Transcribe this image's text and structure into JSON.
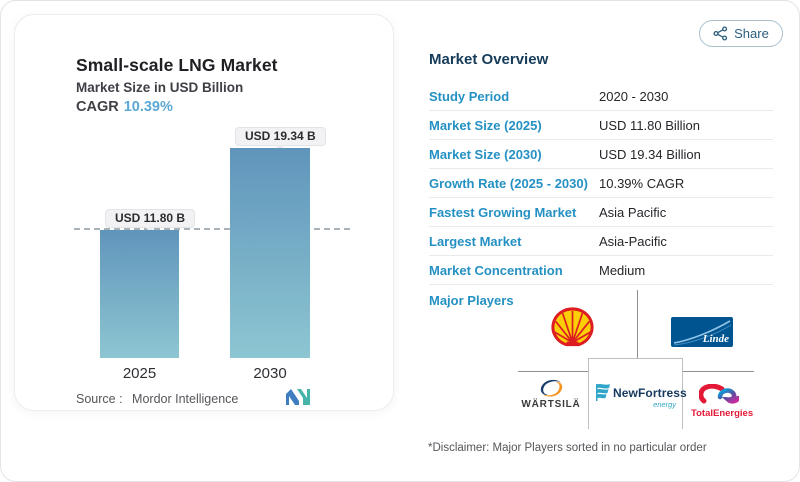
{
  "share": {
    "label": "Share"
  },
  "left_panel": {
    "title": "Small-scale LNG Market",
    "subtitle": "Market Size in USD Billion",
    "cagr_label": "CAGR",
    "cagr_value": "10.39%",
    "source_label": "Source :",
    "source_value": "Mordor Intelligence"
  },
  "chart_data": {
    "type": "bar",
    "categories": [
      "2025",
      "2030"
    ],
    "values": [
      11.8,
      19.34
    ],
    "bar_labels": [
      "USD 11.80 B",
      "USD 19.34 B"
    ],
    "title": "Small-scale LNG Market",
    "ylabel": "Market Size in USD Billion",
    "ylim": [
      0,
      22
    ],
    "grid": false,
    "annotations": "dashed reference line at 2025 bar top",
    "colors": {
      "bar_top": "#6095bb",
      "bar_bottom": "#8dc6d2"
    }
  },
  "overview": {
    "heading": "Market Overview",
    "rows": [
      {
        "label": "Study Period",
        "value": "2020 - 2030"
      },
      {
        "label": "Market Size (2025)",
        "value": "USD 11.80 Billion"
      },
      {
        "label": "Market Size (2030)",
        "value": "USD 19.34 Billion"
      },
      {
        "label": "Growth Rate (2025 - 2030)",
        "value": "10.39% CAGR"
      },
      {
        "label": "Fastest Growing Market",
        "value": "Asia Pacific"
      },
      {
        "label": "Largest Market",
        "value": "Asia-Pacific"
      },
      {
        "label": "Market Concentration",
        "value": "Medium"
      }
    ],
    "major_players_label": "Major Players",
    "players": [
      {
        "name": "Shell"
      },
      {
        "name": "Linde",
        "wordmark": "Linde"
      },
      {
        "name": "Wärtsilä",
        "wordmark": "WÄRTSILÄ"
      },
      {
        "name": "NewFortress Energy",
        "wordmark": "NewFortress",
        "sub": "energy"
      },
      {
        "name": "TotalEnergies",
        "wordmark": "TotalEnergies"
      }
    ],
    "disclaimer": "*Disclaimer: Major Players sorted in no particular order"
  }
}
